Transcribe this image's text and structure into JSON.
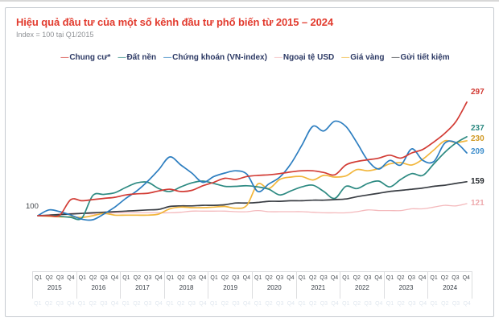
{
  "header": {
    "title": "Hiệu quả đầu tư của một số kênh đầu tư phổ biến từ 2015 – 2024",
    "subtitle": "Index = 100 tại Q1/2015"
  },
  "start_label": "100",
  "axis": {
    "quarter_labels": [
      "Q1",
      "Q2",
      "Q3",
      "Q4"
    ],
    "years": [
      "2015",
      "2016",
      "2017",
      "2018",
      "2019",
      "2020",
      "2021",
      "2022",
      "2023",
      "2024"
    ]
  },
  "chart_data": {
    "type": "line",
    "title": "Hiệu quả đầu tư của một số kênh đầu tư phổ biến từ 2015 – 2024",
    "subtitle": "Index = 100 tại Q1/2015",
    "index_base": 100,
    "x_unit": "quarter",
    "x_range": [
      "Q1/2015",
      "Q4/2024"
    ],
    "legend_position": "top-center",
    "grid": false,
    "series": [
      {
        "name": "Chung cư*",
        "slug": "chung-cu",
        "color": "#d23b34",
        "end_label": "297",
        "label_color": "#d23b34",
        "label_dy": -12,
        "values": [
          100,
          100,
          101,
          128,
          126,
          128,
          130,
          132,
          136,
          138,
          139,
          143,
          146,
          142,
          144,
          152,
          158,
          165,
          163,
          168,
          170,
          171,
          173,
          176,
          178,
          178,
          175,
          171,
          188,
          194,
          197,
          200,
          205,
          200,
          209,
          215,
          228,
          243,
          263,
          297
        ]
      },
      {
        "name": "Đất nền",
        "slug": "dat-nen",
        "color": "#2d8a82",
        "end_label": "237",
        "label_color": "#2d8a82",
        "label_dy": -10,
        "values": [
          100,
          100,
          99,
          97,
          96,
          135,
          137,
          140,
          149,
          157,
          158,
          147,
          142,
          150,
          157,
          160,
          156,
          151,
          151,
          152,
          150,
          146,
          136,
          143,
          150,
          153,
          142,
          130,
          151,
          147,
          156,
          160,
          150,
          163,
          173,
          170,
          190,
          210,
          226,
          237
        ]
      },
      {
        "name": "Chứng khoán (VN-index)",
        "slug": "chung-khoan-vn-index",
        "color": "#2d7ec0",
        "end_label": "209",
        "label_color": "#3f8fcc",
        "label_dy": -1,
        "values": [
          100,
          110,
          107,
          101,
          94,
          93,
          103,
          115,
          130,
          143,
          160,
          180,
          202,
          188,
          174,
          158,
          168,
          174,
          178,
          172,
          142,
          155,
          167,
          190,
          222,
          255,
          247,
          264,
          255,
          227,
          196,
          181,
          196,
          188,
          216,
          196,
          194,
          226,
          227,
          209
        ]
      },
      {
        "name": "Ngoại tệ USD",
        "slug": "ngoai-te-usd",
        "color": "#f4b9bc",
        "end_label": "121",
        "label_color": "#eeaaae",
        "label_dy": 0,
        "values": [
          100,
          101,
          103,
          104,
          104,
          103,
          103,
          105,
          105,
          105,
          105,
          105,
          105,
          106,
          108,
          108,
          108,
          108,
          107,
          107,
          109,
          107,
          107,
          107,
          107,
          106,
          105,
          105,
          105,
          107,
          110,
          109,
          109,
          109,
          112,
          112,
          115,
          118,
          117,
          121
        ]
      },
      {
        "name": "Giá vàng",
        "slug": "gia-vang",
        "color": "#f2b63b",
        "end_label": "230",
        "label_color": "#d09a26",
        "label_dy": -2,
        "values": [
          100,
          99,
          98,
          98,
          97,
          100,
          104,
          101,
          101,
          101,
          101,
          103,
          112,
          115,
          114,
          114,
          115,
          116,
          113,
          118,
          155,
          147,
          163,
          167,
          168,
          162,
          170,
          167,
          169,
          180,
          178,
          182,
          190,
          192,
          188,
          198,
          214,
          230,
          227,
          230
        ]
      },
      {
        "name": "Gửi tiết kiệm",
        "slug": "gui-tiet-kiem",
        "color": "#3a3e44",
        "end_label": "159",
        "label_color": "#24282c",
        "label_dy": 0,
        "values": [
          100,
          101,
          102,
          103,
          104,
          105,
          106,
          107,
          108,
          109,
          110,
          111,
          116,
          117,
          117,
          118,
          118,
          119,
          122,
          122,
          123,
          125,
          125,
          126,
          126,
          127,
          127,
          128,
          129,
          133,
          136,
          139,
          142,
          144,
          146,
          148,
          151,
          153,
          156,
          159
        ]
      }
    ]
  }
}
